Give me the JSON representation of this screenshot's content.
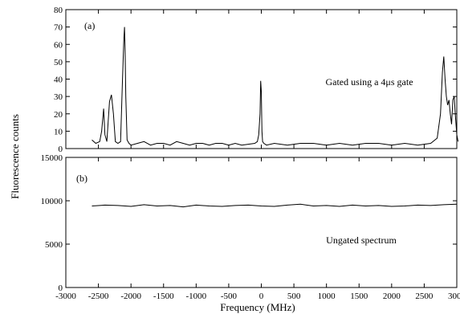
{
  "chart_data": {
    "type": "line",
    "xlabel": "Frequency (MHz)",
    "ylabel": "Fluorescence counts",
    "xlim": [
      -3000,
      3000
    ],
    "x_ticks": [
      "-3000",
      "-2500",
      "-2000",
      "-1500",
      "-1000",
      "-500",
      "0",
      "500",
      "1000",
      "1500",
      "2000",
      "2500",
      "3000"
    ],
    "grid": false,
    "panels": [
      {
        "label": "(a)",
        "annotation": "Gated using a 4μs gate",
        "ylim": [
          0,
          80
        ],
        "y_ticks": [
          "0",
          "10",
          "20",
          "30",
          "40",
          "50",
          "60",
          "70",
          "80"
        ],
        "series": [
          {
            "x": [
              -2600,
              -2540,
              -2480,
              -2450,
              -2420,
              -2400,
              -2370,
              -2330,
              -2300,
              -2270,
              -2240,
              -2200,
              -2160,
              -2130,
              -2110,
              -2100,
              -2090,
              -2080,
              -2060,
              -2030,
              -2000,
              -1900,
              -1800,
              -1700,
              -1600,
              -1500,
              -1400,
              -1300,
              -1200,
              -1100,
              -1000,
              -900,
              -800,
              -700,
              -600,
              -500,
              -400,
              -300,
              -100,
              -60,
              -40,
              -20,
              -10,
              0,
              10,
              20,
              40,
              80,
              200,
              400,
              600,
              800,
              1000,
              1200,
              1400,
              1600,
              1800,
              2000,
              2200,
              2400,
              2600,
              2700,
              2750,
              2780,
              2800,
              2820,
              2840,
              2860,
              2880,
              2900,
              2920,
              2940,
              2960,
              2980,
              3000,
              3020
            ],
            "y": [
              5,
              3,
              4,
              10,
              23,
              8,
              4,
              27,
              31,
              20,
              4,
              3,
              4,
              40,
              62,
              70,
              55,
              30,
              5,
              3,
              2,
              3,
              4,
              2,
              3,
              3,
              2,
              4,
              3,
              2,
              3,
              3,
              2,
              3,
              3,
              2,
              3,
              2,
              3,
              4,
              8,
              20,
              39,
              33,
              10,
              4,
              3,
              2,
              3,
              2,
              3,
              3,
              2,
              3,
              2,
              3,
              3,
              2,
              3,
              2,
              3,
              6,
              20,
              44,
              53,
              40,
              30,
              25,
              28,
              20,
              14,
              28,
              30,
              18,
              8,
              4
            ]
          }
        ]
      },
      {
        "label": "(b)",
        "annotation": "Ungated spectrum",
        "ylim": [
          0,
          15000
        ],
        "y_ticks": [
          "0",
          "5000",
          "10000",
          "15000"
        ],
        "series": [
          {
            "x": [
              -2600,
              -2400,
              -2200,
              -2000,
              -1800,
              -1600,
              -1400,
              -1200,
              -1000,
              -800,
              -600,
              -400,
              -200,
              0,
              200,
              400,
              600,
              800,
              1000,
              1200,
              1400,
              1600,
              1800,
              2000,
              2200,
              2400,
              2600,
              2800,
              3000
            ],
            "y": [
              9400,
              9500,
              9450,
              9350,
              9550,
              9400,
              9450,
              9300,
              9500,
              9400,
              9350,
              9450,
              9500,
              9400,
              9350,
              9500,
              9600,
              9400,
              9450,
              9350,
              9500,
              9400,
              9450,
              9350,
              9400,
              9500,
              9450,
              9550,
              9600
            ]
          }
        ]
      }
    ]
  }
}
